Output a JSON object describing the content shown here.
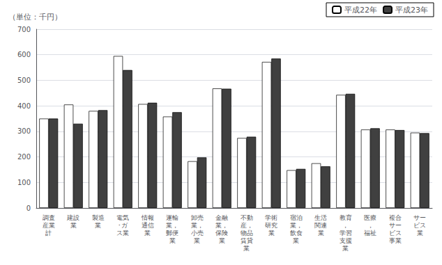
{
  "chart_data": {
    "type": "bar",
    "ylabel": "（単位：千円）",
    "categories": [
      "調査\n産業\n計",
      "建設\n業",
      "製造\n業",
      "電気\n･ガ\nス業",
      "情報\n通信\n業",
      "運輸\n業，\n郵便\n業",
      "卸売\n業，\n小売\n業",
      "金融\n業，\n保険\n業",
      "不動\n産，\n物品\n賃貸\n業",
      "学術\n研究\n業",
      "宿泊\n業，\n飲食\n業",
      "生活\n関連\n業",
      "教育\n，\n学習\n支援\n業",
      "医療\n，\n福祉",
      "複合\nサー\nビス\n事業",
      "サー\nビス\n業"
    ],
    "series": [
      {
        "name": "平成22年",
        "color": "#ffffff",
        "values": [
          350,
          405,
          380,
          595,
          407,
          358,
          183,
          468,
          274,
          572,
          148,
          175,
          443,
          307,
          307,
          295
        ]
      },
      {
        "name": "平成23年",
        "color": "#404040",
        "values": [
          350,
          330,
          383,
          540,
          412,
          375,
          198,
          467,
          279,
          585,
          153,
          163,
          447,
          312,
          305,
          293
        ]
      }
    ],
    "ylim": [
      0,
      700
    ],
    "yticks": [
      0,
      100,
      200,
      300,
      400,
      500,
      600,
      700
    ],
    "grid": true,
    "legend": "upper right"
  }
}
